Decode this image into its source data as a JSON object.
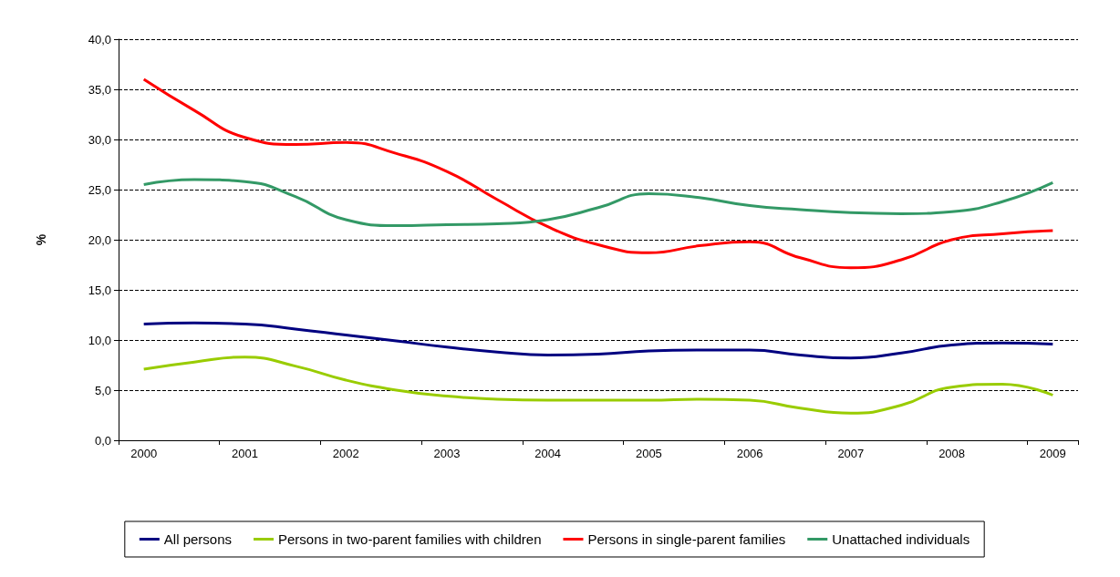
{
  "chart_data": {
    "type": "line",
    "ylabel": "%",
    "categories": [
      "2000",
      null,
      "2001",
      null,
      "2002",
      null,
      "2003",
      null,
      "2004",
      null,
      "2005",
      null,
      "2006",
      null,
      "2007",
      null,
      "2008",
      null,
      "2009"
    ],
    "series": [
      {
        "name": "All persons",
        "color": "#000080",
        "values": [
          11.6,
          11.7,
          11.6,
          11.1,
          10.5,
          9.9,
          9.3,
          8.8,
          8.5,
          8.6,
          8.9,
          9.0,
          9.0,
          8.5,
          8.2,
          8.7,
          9.5,
          9.7,
          9.6
        ]
      },
      {
        "name": "Persons in two-parent families with children",
        "color": "#99cc00",
        "values": [
          7.1,
          7.8,
          8.3,
          7.4,
          6.0,
          5.0,
          4.4,
          4.1,
          4.0,
          4.0,
          4.0,
          4.1,
          4.0,
          3.2,
          2.7,
          3.5,
          5.3,
          5.6,
          4.5
        ]
      },
      {
        "name": "Persons in single-parent families",
        "color": "#ff0000",
        "values": [
          36.0,
          32.9,
          30.2,
          29.5,
          29.7,
          28.6,
          26.8,
          24.0,
          21.3,
          19.5,
          18.7,
          19.4,
          19.8,
          18.2,
          17.2,
          18.0,
          20.0,
          20.6,
          20.9
        ]
      },
      {
        "name": "Unattached individuals",
        "color": "#339966",
        "values": [
          25.5,
          26.0,
          25.8,
          24.3,
          22.0,
          21.4,
          21.5,
          21.6,
          22.0,
          23.2,
          24.6,
          24.2,
          23.4,
          23.0,
          22.7,
          22.6,
          22.8,
          23.8,
          25.7
        ]
      }
    ],
    "ylim": [
      0,
      40
    ],
    "yticks": [
      {
        "value": 0,
        "label": "0,0"
      },
      {
        "value": 5,
        "label": "5,0"
      },
      {
        "value": 10,
        "label": "10,0"
      },
      {
        "value": 15,
        "label": "15,0"
      },
      {
        "value": 20,
        "label": "20,0"
      },
      {
        "value": 25,
        "label": "25,0"
      },
      {
        "value": 30,
        "label": "30,0"
      },
      {
        "value": 35,
        "label": "35,0"
      },
      {
        "value": 40,
        "label": "40,0"
      }
    ],
    "grid": "y",
    "legend": "bottom",
    "marker": "none",
    "line_style": "solid"
  }
}
